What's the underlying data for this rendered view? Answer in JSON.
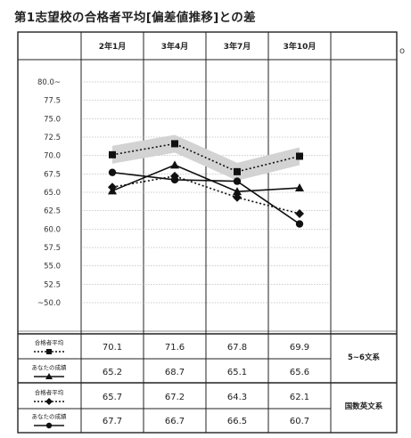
{
  "title": "第1志望校の合格者平均[偏差値推移]との差",
  "edge_mark": "o",
  "chart_data": {
    "type": "line",
    "title": "第1志望校の合格者平均[偏差値推移]との差",
    "categories": [
      "2年1月",
      "3年4月",
      "3年7月",
      "3年10月"
    ],
    "ytick_labels": [
      "80.0~",
      "77.5",
      "75.0",
      "72.5",
      "70.0",
      "67.5",
      "65.0",
      "62.5",
      "60.0",
      "57.5",
      "55.0",
      "52.5",
      "~50.0"
    ],
    "ylim": [
      50,
      80
    ],
    "grid": true,
    "groups": [
      {
        "label": "5~6文系",
        "series": [
          {
            "name": "合格者平均",
            "marker": "square",
            "style": "dotted",
            "values": [
              70.1,
              71.6,
              67.8,
              69.9
            ]
          },
          {
            "name": "あなたの成績",
            "marker": "triangle",
            "style": "solid",
            "values": [
              65.2,
              68.7,
              65.1,
              65.6
            ]
          }
        ]
      },
      {
        "label": "国数英文系",
        "series": [
          {
            "name": "合格者平均",
            "marker": "diamond",
            "style": "dotted",
            "values": [
              65.7,
              67.2,
              64.3,
              62.1
            ]
          },
          {
            "name": "あなたの成績",
            "marker": "circle",
            "style": "solid",
            "values": [
              67.7,
              66.7,
              66.5,
              60.7
            ]
          }
        ]
      }
    ],
    "table": {
      "rows": [
        {
          "label": "合格者平均",
          "values": [
            "70.1",
            "71.6",
            "67.8",
            "69.9"
          ]
        },
        {
          "label": "あなたの成績",
          "values": [
            "65.2",
            "68.7",
            "65.1",
            "65.6"
          ]
        },
        {
          "label": "合格者平均",
          "values": [
            "65.7",
            "67.2",
            "64.3",
            "62.1"
          ]
        },
        {
          "label": "あなたの成績",
          "values": [
            "67.7",
            "66.7",
            "66.5",
            "60.7"
          ]
        }
      ]
    }
  },
  "colors": {
    "band": "#d3d3d3",
    "line": "#111111",
    "grid": "#999999"
  }
}
